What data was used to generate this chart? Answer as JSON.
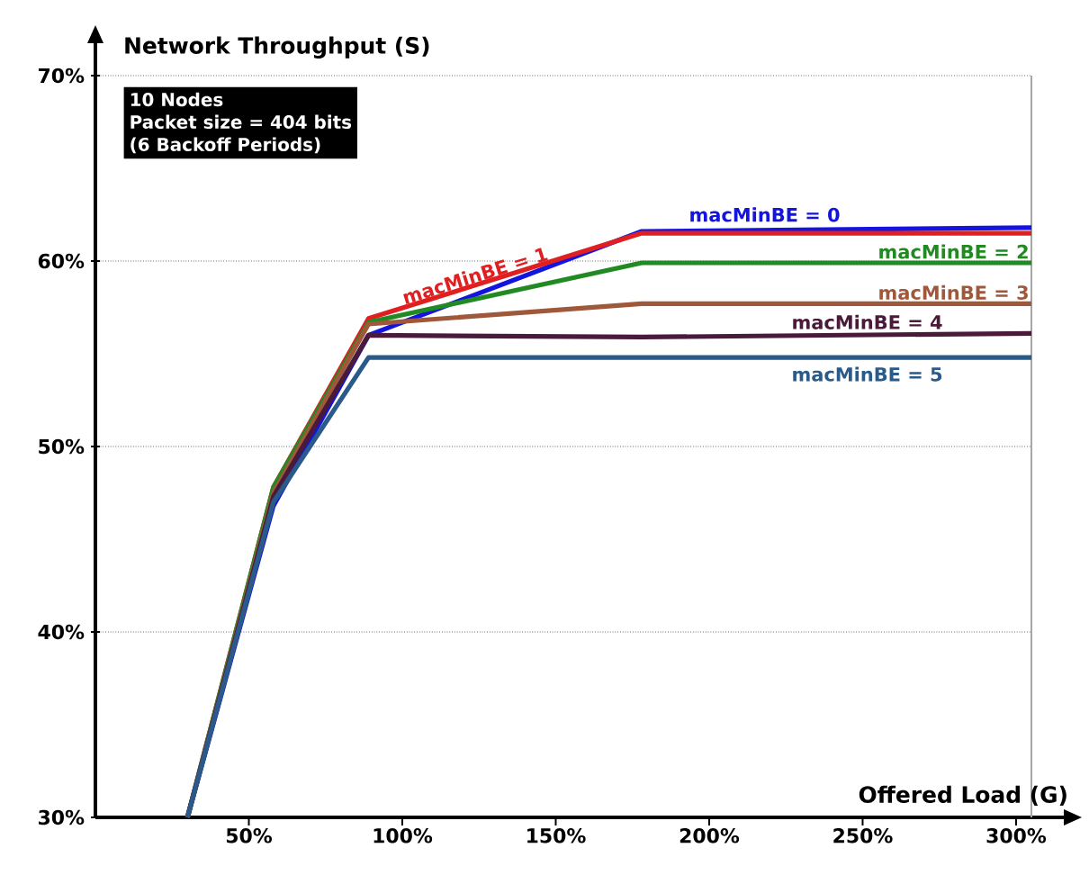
{
  "chart_data": {
    "type": "line",
    "ylabel": "Network Throughput (S)",
    "xlabel": "Offered Load (G)",
    "annotations": [
      "10 Nodes",
      "Packet size = 404 bits",
      "(6 Backoff Periods)"
    ],
    "x": [
      30,
      58,
      89,
      178,
      305
    ],
    "series": [
      {
        "name": "macMinBE = 0",
        "color": "#1414e0",
        "values": [
          30,
          46.8,
          56.0,
          61.6,
          61.8
        ]
      },
      {
        "name": "macMinBE = 1",
        "color": "#e02020",
        "values": [
          30,
          47.8,
          56.9,
          61.5,
          61.5
        ]
      },
      {
        "name": "macMinBE = 2",
        "color": "#228a22",
        "values": [
          30,
          47.8,
          56.7,
          59.9,
          59.9
        ]
      },
      {
        "name": "macMinBE = 3",
        "color": "#a0583a",
        "values": [
          30,
          47.5,
          56.6,
          57.7,
          57.7
        ]
      },
      {
        "name": "macMinBE = 4",
        "color": "#4a1a3a",
        "values": [
          30,
          47.3,
          56.0,
          55.9,
          56.1
        ]
      },
      {
        "name": "macMinBE = 5",
        "color": "#2a5a8a",
        "values": [
          30,
          47.0,
          54.8,
          54.8,
          54.8
        ]
      }
    ],
    "xlim": [
      0,
      305
    ],
    "ylim": [
      30,
      70
    ],
    "xticks": [
      {
        "value": 50,
        "label": "50%"
      },
      {
        "value": 100,
        "label": "100%"
      },
      {
        "value": 150,
        "label": "150%"
      },
      {
        "value": 200,
        "label": "200%"
      },
      {
        "value": 250,
        "label": "250%"
      },
      {
        "value": 300,
        "label": "300%"
      }
    ],
    "yticks": [
      {
        "value": 30,
        "label": "30%"
      },
      {
        "value": 40,
        "label": "40%"
      },
      {
        "value": 50,
        "label": "50%"
      },
      {
        "value": 60,
        "label": "60%"
      },
      {
        "value": 70,
        "label": "70%"
      }
    ],
    "grid": "y",
    "marker": "none",
    "line_style": "solid"
  }
}
